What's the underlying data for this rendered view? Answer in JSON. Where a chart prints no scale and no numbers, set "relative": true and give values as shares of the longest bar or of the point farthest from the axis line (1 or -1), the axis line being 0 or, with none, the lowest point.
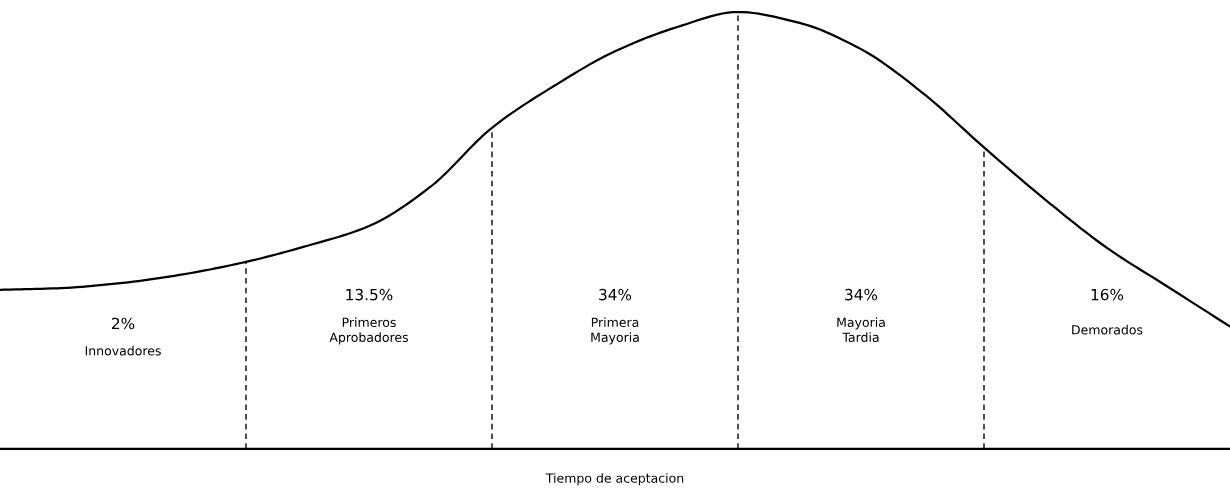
{
  "chart_data": {
    "type": "line",
    "relative": true,
    "xlabel": "Tiempo de aceptacion",
    "categories": [
      null,
      null,
      null,
      null,
      null,
      null,
      null,
      null,
      null,
      null,
      null,
      null,
      null,
      null,
      null,
      null,
      null,
      null,
      null,
      null,
      null
    ],
    "series": [
      {
        "color": "#000000",
        "values": [
          0.364,
          0.368,
          0.38,
          0.4,
          0.428,
          0.465,
          0.51,
          0.6,
          0.735,
          0.83,
          0.91,
          0.965,
          1.0,
          0.975,
          0.915,
          0.815,
          0.69,
          0.57,
          0.46,
          0.37,
          0.28
        ]
      }
    ],
    "annotations": [
      "2%",
      "Innovadores",
      "13.5%",
      "Primeros\nAprobadores",
      "34%",
      "Primera\nMayoria",
      "34%",
      "Mayoria\nTardia",
      "16%",
      "Demorados"
    ]
  }
}
